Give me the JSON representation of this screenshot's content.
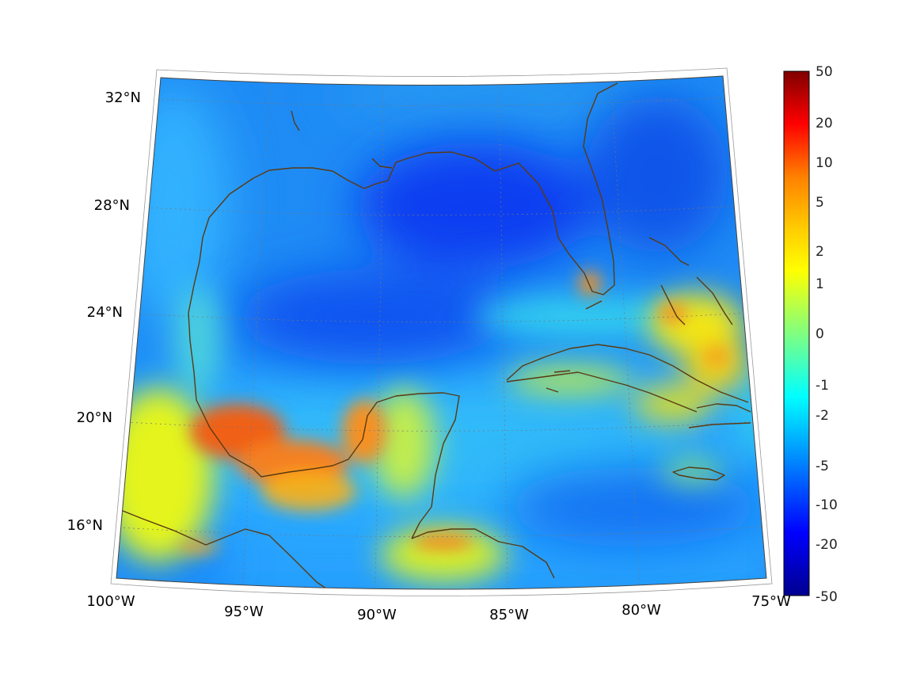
{
  "map": {
    "projection": "conic",
    "lon_range": [
      -100,
      -75
    ],
    "lat_range": [
      14,
      33
    ],
    "longitude_labels": [
      "100°W",
      "95°W",
      "90°W",
      "85°W",
      "80°W",
      "75°W"
    ],
    "latitude_labels": [
      "32°N",
      "28°N",
      "24°N",
      "20°N",
      "16°N"
    ],
    "coastline_color": "#5a3a12",
    "background_field": "diverging-jet"
  },
  "colorbar": {
    "ticks": [
      "50",
      "20",
      "10",
      "5",
      "2",
      "1",
      "0",
      "-1",
      "-2",
      "-5",
      "-10",
      "-20",
      "-50"
    ],
    "range": [
      -50,
      50
    ],
    "scale": "symmetric-log",
    "colormap": [
      "#00008f",
      "#0000ff",
      "#0080ff",
      "#00ffff",
      "#80ff80",
      "#ffff00",
      "#ff8000",
      "#ff0000",
      "#800000"
    ]
  }
}
